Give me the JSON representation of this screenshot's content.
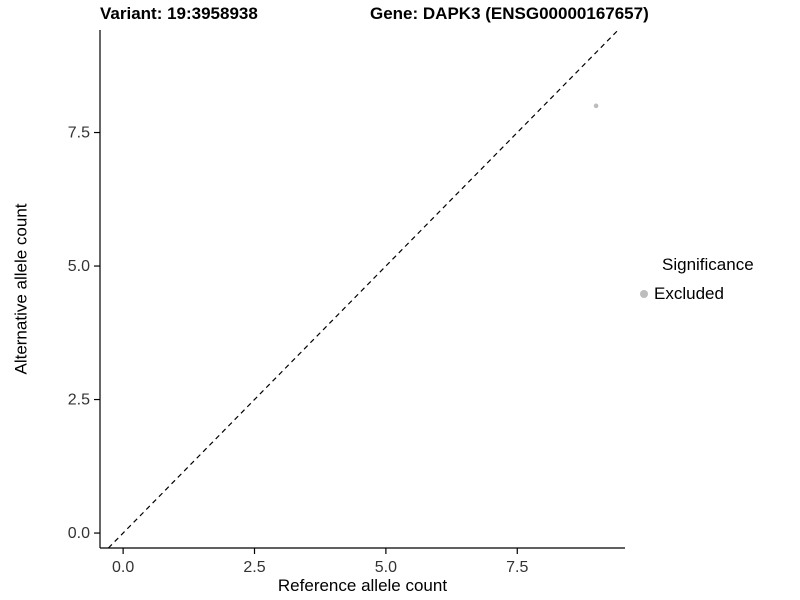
{
  "header": {
    "variant_title": "Variant: 19:3958938",
    "gene_title": "Gene: DAPK3 (ENSG00000167657)"
  },
  "axes": {
    "xlabel": "Reference allele count",
    "ylabel": "Alternative allele count"
  },
  "chart_data": {
    "type": "scatter",
    "title": "Variant: 19:3958938  Gene: DAPK3 (ENSG00000167657)",
    "xlabel": "Reference allele count",
    "ylabel": "Alternative allele count",
    "xlim": [
      -0.44,
      9.55
    ],
    "ylim": [
      -0.28,
      9.42
    ],
    "x_ticks": [
      0.0,
      2.5,
      5.0,
      7.5
    ],
    "y_ticks": [
      0.0,
      2.5,
      5.0,
      7.5
    ],
    "x_tick_labels": [
      "0.0",
      "2.5",
      "5.0",
      "7.5"
    ],
    "y_tick_labels": [
      "0.0",
      "2.5",
      "5.0",
      "7.5"
    ],
    "grid": false,
    "background": "#ffffff",
    "axis_color": "#000000",
    "series": [
      {
        "name": "Excluded",
        "color": "#bdbdbd",
        "points": [
          {
            "x": 9,
            "y": 8
          }
        ]
      }
    ],
    "reference_line": {
      "type": "identity",
      "style": "dashed",
      "color": "#000000",
      "from": {
        "x": -0.28,
        "y": -0.28
      },
      "to": {
        "x": 9.42,
        "y": 9.42
      }
    },
    "legend": {
      "title": "Significance",
      "position": "right",
      "entries": [
        {
          "label": "Excluded",
          "color": "#bdbdbd"
        }
      ]
    }
  }
}
